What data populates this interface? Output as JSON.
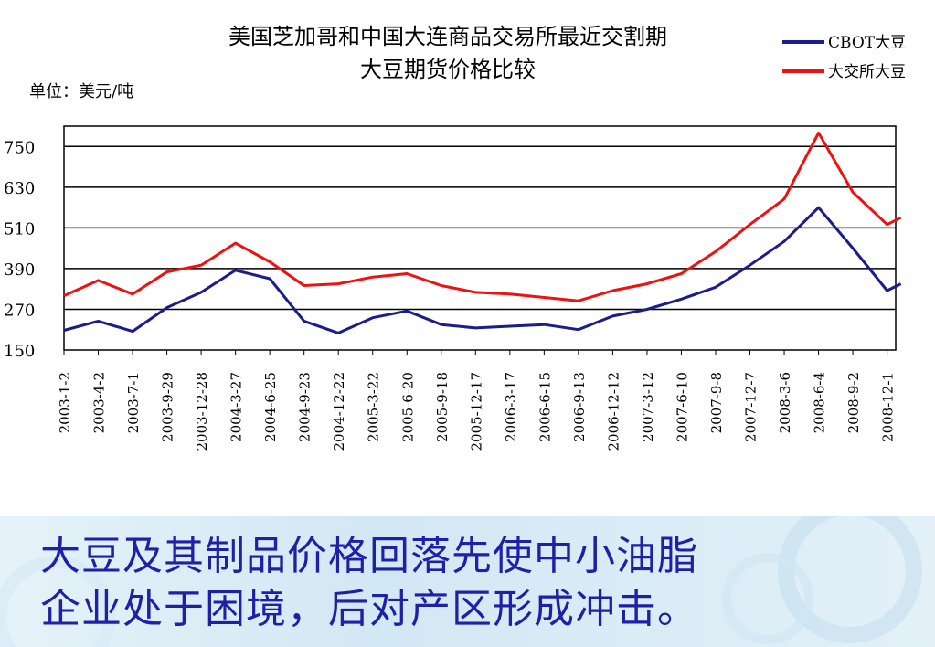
{
  "chart_data": {
    "type": "line",
    "title": [
      "美国芝加哥和中国大连商品交易所最近交割期",
      "大豆期货价格比较"
    ],
    "unit_label": "单位：美元/吨",
    "ylim": [
      150,
      810
    ],
    "yticks": [
      150,
      270,
      390,
      510,
      630,
      750
    ],
    "grid": true,
    "legend_position": "top-right",
    "categories": [
      "2003-1-2",
      "2003-4-2",
      "2003-7-1",
      "2003-9-29",
      "2003-12-28",
      "2004-3-27",
      "2004-6-25",
      "2004-9-23",
      "2004-12-22",
      "2005-3-22",
      "2005-6-20",
      "2005-9-18",
      "2005-12-17",
      "2006-3-17",
      "2006-6-15",
      "2006-9-13",
      "2006-12-12",
      "2007-3-12",
      "2007-6-10",
      "2007-9-8",
      "2007-12-7",
      "2008-3-6",
      "2008-6-4",
      "2008-9-2",
      "2008-12-1"
    ],
    "series": [
      {
        "name": "CBOT大豆",
        "color": "#1c1c8c",
        "values": [
          208,
          235,
          205,
          275,
          320,
          385,
          360,
          235,
          200,
          245,
          265,
          225,
          215,
          220,
          225,
          210,
          250,
          270,
          300,
          335,
          400,
          470,
          570,
          450,
          325
        ],
        "extra": [
          {
            "x": 24.4,
            "y": 345
          }
        ]
      },
      {
        "name": "大交所大豆",
        "color": "#ee1111",
        "values": [
          310,
          355,
          315,
          380,
          400,
          465,
          410,
          340,
          345,
          365,
          375,
          340,
          320,
          315,
          305,
          295,
          325,
          345,
          375,
          440,
          520,
          595,
          790,
          615,
          520
        ],
        "extra": [
          {
            "x": 24.4,
            "y": 540
          }
        ]
      }
    ]
  },
  "caption": {
    "line1": "大豆及其制品价格回落先使中小油脂",
    "line2": "企业处于困境，后对产区形成冲击。"
  }
}
